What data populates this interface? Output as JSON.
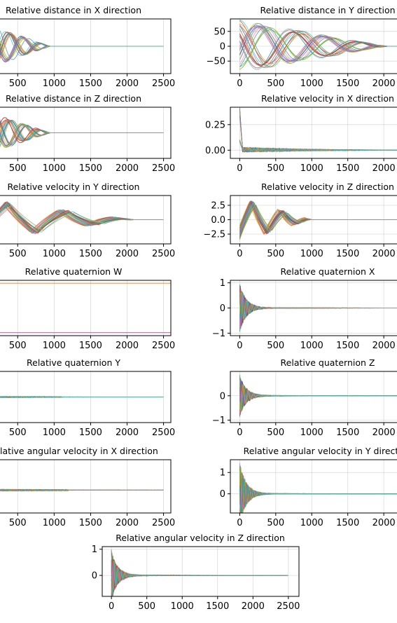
{
  "palette": [
    "#1f77b4",
    "#ff7f0e",
    "#2ca02c",
    "#d62728",
    "#9467bd",
    "#8c564b",
    "#e377c2",
    "#7f7f7f",
    "#bcbd22",
    "#17becf"
  ],
  "chart_data": [
    {
      "type": "line",
      "title": "Relative distance in X direction",
      "x_ticks": [
        500,
        1000,
        1500,
        2000,
        2500
      ],
      "y_ticks": [],
      "xlim": [
        200,
        2600
      ],
      "ylim": [
        -1.2,
        1.2
      ],
      "series_count": 30,
      "pattern": "oscillation",
      "peak": 1.0,
      "period": 440,
      "settle": 950
    },
    {
      "type": "line",
      "title": "Relative distance in Y direction",
      "x_ticks": [
        0,
        500,
        1000,
        1500,
        2000
      ],
      "y_ticks": [
        50,
        0,
        -50
      ],
      "y_tick_labels": [
        "50",
        "0",
        "−50"
      ],
      "xlim": [
        -130,
        2300
      ],
      "ylim": [
        -92,
        92
      ],
      "series_count": 30,
      "pattern": "oscillation",
      "peak": 82,
      "period": 900,
      "settle": 2050
    },
    {
      "type": "line",
      "title": "Relative distance in Z direction",
      "x_ticks": [
        500,
        1000,
        1500,
        2000,
        2500
      ],
      "y_ticks": [],
      "xlim": [
        200,
        2600
      ],
      "ylim": [
        -1.2,
        1.2
      ],
      "series_count": 30,
      "pattern": "oscillation",
      "peak": 1.0,
      "period": 440,
      "settle": 950
    },
    {
      "type": "line",
      "title": "Relative velocity in X direction",
      "x_ticks": [
        0,
        500,
        1000,
        1500,
        2000
      ],
      "y_ticks": [
        0.25,
        0.0
      ],
      "y_tick_labels": [
        "0.25",
        "0.00"
      ],
      "xlim": [
        -130,
        2300
      ],
      "ylim": [
        -0.08,
        0.42
      ],
      "series_count": 30,
      "pattern": "spike",
      "peak": 0.38,
      "period": 60,
      "settle": 2300
    },
    {
      "type": "line",
      "title": "Relative velocity in Y direction",
      "x_ticks": [
        500,
        1000,
        1500,
        2000,
        2500
      ],
      "y_ticks": [],
      "xlim": [
        200,
        2600
      ],
      "ylim": [
        -1.2,
        1.2
      ],
      "series_count": 30,
      "pattern": "zigzag",
      "peak": 1.0,
      "period": 800,
      "settle": 2100
    },
    {
      "type": "line",
      "title": "Relative velocity in Z direction",
      "x_ticks": [
        0,
        500,
        1000,
        1500,
        2000
      ],
      "y_ticks": [
        2.5,
        0.0,
        -2.5
      ],
      "y_tick_labels": [
        "2.5",
        "0.0",
        "−2.5"
      ],
      "xlim": [
        -130,
        2300
      ],
      "ylim": [
        -4.2,
        4.2
      ],
      "series_count": 30,
      "pattern": "zigzag",
      "peak": 3.7,
      "period": 420,
      "settle": 1000
    },
    {
      "type": "line",
      "title": "Relative quaternion W",
      "x_ticks": [
        500,
        1000,
        1500,
        2000,
        2500
      ],
      "y_ticks": [],
      "xlim": [
        200,
        2600
      ],
      "ylim": [
        -1.1,
        1.1
      ],
      "series_count": 4,
      "pattern": "constant",
      "levels": [
        0.98,
        -0.98
      ],
      "peak": 1.0,
      "period": 0,
      "settle": 0
    },
    {
      "type": "line",
      "title": "Relative quaternion X",
      "x_ticks": [
        0,
        500,
        1000,
        1500,
        2000
      ],
      "y_ticks": [
        1,
        0,
        -1
      ],
      "y_tick_labels": [
        "1",
        "0",
        "−1"
      ],
      "xlim": [
        -130,
        2300
      ],
      "ylim": [
        -1.1,
        1.1
      ],
      "series_count": 30,
      "pattern": "decay",
      "peak": 0.9,
      "period": 70,
      "settle": 1100
    },
    {
      "type": "line",
      "title": "Relative quaternion Y",
      "x_ticks": [
        500,
        1000,
        1500,
        2000,
        2500
      ],
      "y_ticks": [],
      "xlim": [
        200,
        2600
      ],
      "ylim": [
        -1.1,
        1.1
      ],
      "series_count": 30,
      "pattern": "noise",
      "peak": 0.03,
      "period": 40,
      "settle": 1100
    },
    {
      "type": "line",
      "title": "Relative quaternion Z",
      "x_ticks": [
        0,
        500,
        1000,
        1500,
        2000
      ],
      "y_ticks": [
        0,
        -1
      ],
      "y_tick_labels": [
        "0",
        "−1"
      ],
      "xlim": [
        -130,
        2300
      ],
      "ylim": [
        -1.1,
        1.0
      ],
      "series_count": 30,
      "pattern": "decay",
      "peak": 0.8,
      "period": 70,
      "settle": 1100
    },
    {
      "type": "line",
      "title": "Relative angular velocity in X direction",
      "x_ticks": [
        500,
        1000,
        1500,
        2000,
        2500
      ],
      "y_ticks": [],
      "xlim": [
        200,
        2600
      ],
      "ylim": [
        -1.2,
        1.6
      ],
      "series_count": 30,
      "pattern": "noise",
      "peak": 0.05,
      "period": 30,
      "settle": 1200
    },
    {
      "type": "line",
      "title": "Relative angular velocity in Y direction",
      "x_ticks": [
        0,
        500,
        1000,
        1500,
        2000
      ],
      "y_ticks": [
        1,
        0
      ],
      "y_tick_labels": [
        "1",
        "0"
      ],
      "xlim": [
        -130,
        2300
      ],
      "ylim": [
        -0.9,
        1.6
      ],
      "series_count": 30,
      "pattern": "decay",
      "peak": 1.4,
      "period": 60,
      "settle": 1100
    },
    {
      "type": "line",
      "title": "Relative angular velocity in Z direction",
      "x_ticks": [
        0,
        500,
        1000,
        1500,
        2000,
        2500
      ],
      "y_ticks": [
        1,
        0
      ],
      "y_tick_labels": [
        "1",
        "0"
      ],
      "xlim": [
        -130,
        2650
      ],
      "ylim": [
        -0.8,
        1.1
      ],
      "series_count": 30,
      "pattern": "decay",
      "peak": 0.9,
      "period": 50,
      "settle": 1200
    }
  ]
}
